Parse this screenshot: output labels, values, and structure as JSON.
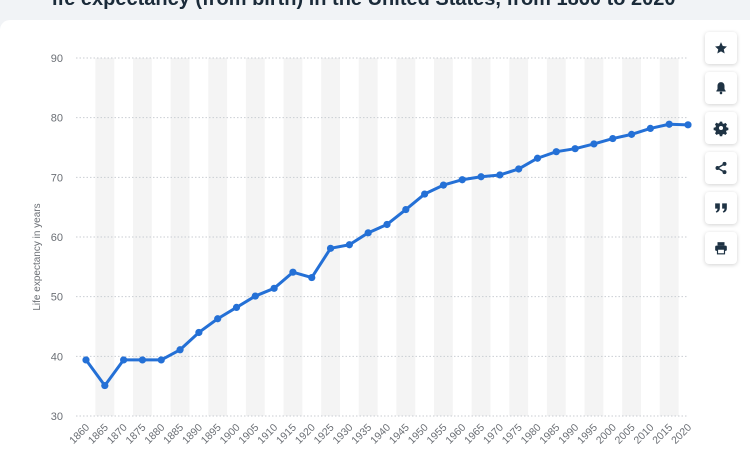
{
  "header": {
    "title_fragment": "ife expectancy (from birth) in the United States, from 1860 to 2020"
  },
  "toolbar": {
    "buttons": [
      {
        "name": "favorite",
        "icon": "star-icon"
      },
      {
        "name": "notify",
        "icon": "bell-icon"
      },
      {
        "name": "settings",
        "icon": "gear-icon"
      },
      {
        "name": "share",
        "icon": "share-icon"
      },
      {
        "name": "cite",
        "icon": "quote-icon"
      },
      {
        "name": "print",
        "icon": "print-icon"
      }
    ]
  },
  "colors": {
    "line": "#2470d6",
    "grid": "#c9cdd2",
    "band": "#f4f4f4",
    "text": "#6b6f75",
    "icon": "#1f3344"
  },
  "chart_data": {
    "type": "line",
    "title": "",
    "xlabel": "",
    "ylabel": "Life expectancy in years",
    "ylim": [
      30,
      90
    ],
    "yticks": [
      30,
      40,
      50,
      60,
      70,
      80,
      90
    ],
    "grid": true,
    "categories": [
      "1860",
      "1865",
      "1870",
      "1875",
      "1880",
      "1885",
      "1890",
      "1895",
      "1900",
      "1905",
      "1910",
      "1915",
      "1920",
      "1925",
      "1930",
      "1935",
      "1940",
      "1945",
      "1950",
      "1955",
      "1960",
      "1965",
      "1970",
      "1975",
      "1980",
      "1985",
      "1990",
      "1995",
      "2000",
      "2005",
      "2010",
      "2015",
      "2020"
    ],
    "series": [
      {
        "values": [
          39.4,
          35.1,
          39.4,
          39.4,
          39.4,
          41.1,
          44.0,
          46.3,
          48.2,
          50.1,
          51.4,
          54.1,
          53.2,
          58.1,
          58.7,
          60.7,
          62.1,
          64.6,
          67.2,
          68.7,
          69.6,
          70.1,
          70.4,
          71.4,
          73.2,
          74.3,
          74.8,
          75.6,
          76.5,
          77.2,
          78.2,
          78.9,
          78.8
        ]
      }
    ]
  }
}
